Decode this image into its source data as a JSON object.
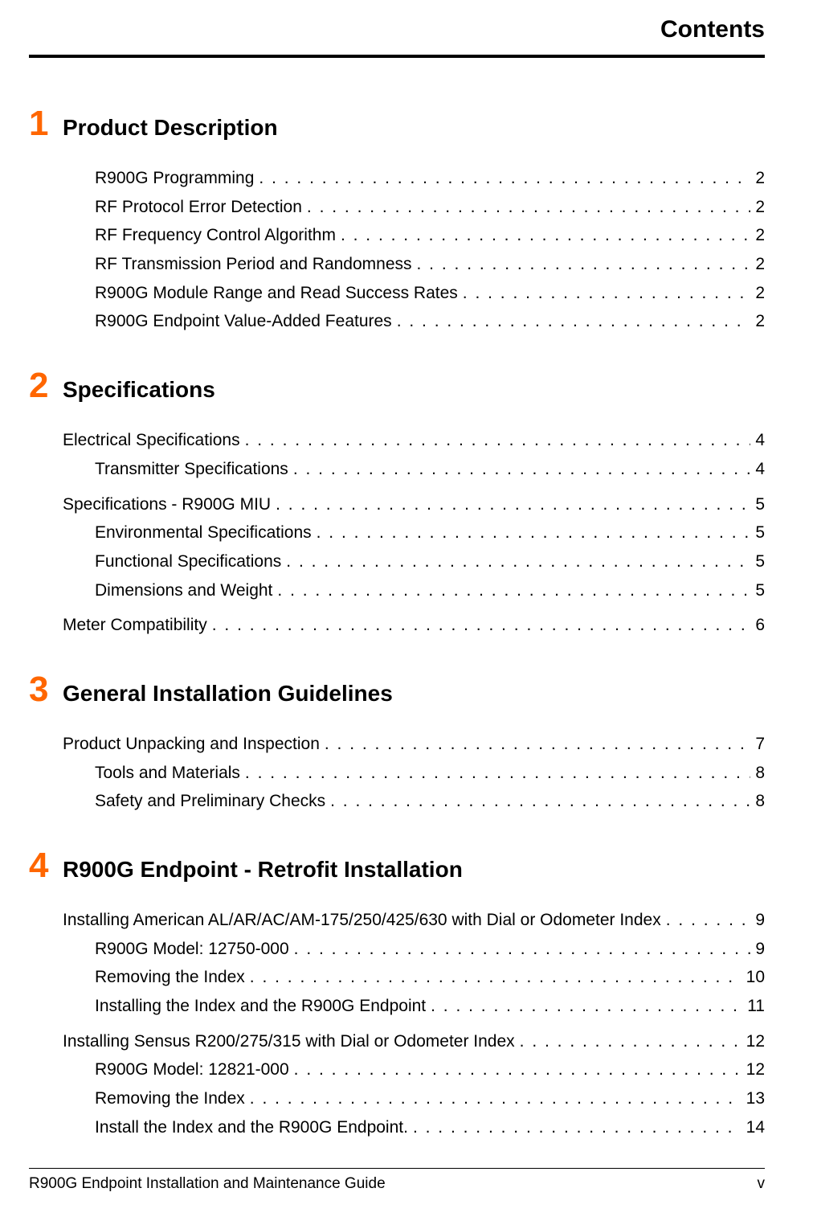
{
  "header": {
    "title": "Contents"
  },
  "footer": {
    "left": "R900G Endpoint  Installation and Maintenance Guide",
    "right": "v"
  },
  "chapters": [
    {
      "num": "1",
      "title": "Product Description",
      "entries": [
        {
          "level": 2,
          "label": "R900G Programming",
          "page": "2"
        },
        {
          "level": 2,
          "label": "RF Protocol Error Detection",
          "page": "2"
        },
        {
          "level": 2,
          "label": "RF Frequency Control Algorithm",
          "page": "2"
        },
        {
          "level": 2,
          "label": "RF Transmission Period and Randomness",
          "page": "2"
        },
        {
          "level": 2,
          "label": "R900G Module Range and Read Success Rates",
          "page": "2"
        },
        {
          "level": 2,
          "label": "R900G Endpoint Value-Added Features",
          "page": "2"
        }
      ]
    },
    {
      "num": "2",
      "title": "Specifications",
      "entries": [
        {
          "level": 1,
          "label": "Electrical Specifications",
          "page": "4"
        },
        {
          "level": 2,
          "label": "Transmitter Specifications",
          "page": "4"
        },
        {
          "level": 1,
          "label": "Specifications - R900G MIU",
          "page": "5",
          "gap": true
        },
        {
          "level": 2,
          "label": "Environmental Specifications",
          "page": "5"
        },
        {
          "level": 2,
          "label": "Functional Specifications",
          "page": "5"
        },
        {
          "level": 2,
          "label": "Dimensions and Weight",
          "page": "5"
        },
        {
          "level": 1,
          "label": "Meter Compatibility",
          "page": "6",
          "gap": true
        }
      ]
    },
    {
      "num": "3",
      "title": "General Installation Guidelines",
      "entries": [
        {
          "level": 1,
          "label": "Product Unpacking and Inspection",
          "page": "7"
        },
        {
          "level": 2,
          "label": "Tools and Materials",
          "page": "8"
        },
        {
          "level": 2,
          "label": "Safety and Preliminary Checks",
          "page": "8"
        }
      ]
    },
    {
      "num": "4",
      "title": "R900G Endpoint - Retrofit Installation",
      "entries": [
        {
          "level": 1,
          "label": "Installing American AL/AR/AC/AM-175/250/425/630 with Dial or Odometer Index",
          "page": "9"
        },
        {
          "level": 2,
          "label": "R900G Model: 12750-000",
          "page": "9"
        },
        {
          "level": 2,
          "label": "Removing the Index",
          "page": "10"
        },
        {
          "level": 2,
          "label": "Installing the Index and the R900G Endpoint",
          "page": "11"
        },
        {
          "level": 1,
          "label": "Installing Sensus R200/275/315 with Dial or Odometer Index",
          "page": "12",
          "gap": true
        },
        {
          "level": 2,
          "label": "R900G Model: 12821-000",
          "page": "12"
        },
        {
          "level": 2,
          "label": "Removing the Index",
          "page": "13"
        },
        {
          "level": 2,
          "label": "Install the Index and the R900G Endpoint.",
          "page": "14"
        }
      ]
    }
  ]
}
